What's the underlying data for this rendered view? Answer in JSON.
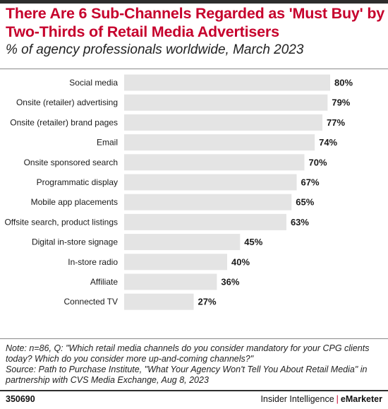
{
  "title": "There Are 6 Sub-Channels Regarded as 'Must Buy' by Two-Thirds of Retail Media Advertisers",
  "subtitle": "% of agency professionals worldwide, March 2023",
  "chart_data": {
    "type": "bar",
    "orientation": "horizontal",
    "categories": [
      "Social media",
      "Onsite (retailer) advertising",
      "Onsite (retailer) brand pages",
      "Email",
      "Onsite sponsored search",
      "Programmatic display",
      "Mobile app placements",
      "Offsite search, product listings",
      "Digital in-store signage",
      "In-store radio",
      "Affiliate",
      "Connected TV"
    ],
    "values": [
      80,
      79,
      77,
      74,
      70,
      67,
      65,
      63,
      45,
      40,
      36,
      27
    ],
    "value_labels": [
      "80%",
      "79%",
      "77%",
      "74%",
      "70%",
      "67%",
      "65%",
      "63%",
      "45%",
      "40%",
      "36%",
      "27%"
    ],
    "xlim": [
      0,
      100
    ],
    "grid": false,
    "legend": "none",
    "bar_color": "#e4e4e4"
  },
  "note": "Note: n=86, Q: \"Which retail media channels do you consider mandatory for your CPG clients today? Which do you consider more up-and-coming channels?\"",
  "source": "Source: Path to Purchase Institute, \"What Your Agency Won't Tell You About Retail Media\" in partnership with CVS Media Exchange, Aug 8, 2023",
  "footer": {
    "chart_id": "350690",
    "brand_left": "Insider Intelligence",
    "separator": "|",
    "brand_right": "eMarketer"
  }
}
